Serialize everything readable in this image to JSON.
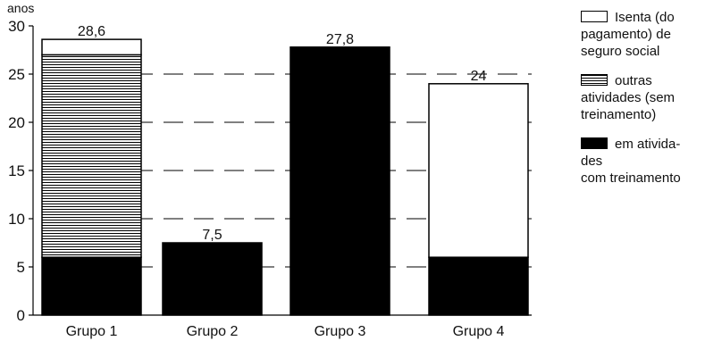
{
  "chart_data": {
    "type": "bar",
    "stacked": true,
    "unit_label": "anos",
    "categories": [
      "Grupo 1",
      "Grupo 2",
      "Grupo 3",
      "Grupo 4"
    ],
    "totals": [
      "28,6",
      "7,5",
      "27,8",
      "24"
    ],
    "series": [
      {
        "name": "em atividades com treinamento",
        "values": [
          6,
          7.5,
          27.8,
          6
        ],
        "fill": "black"
      },
      {
        "name": "outras atividades (sem treinamento)",
        "values": [
          21,
          0,
          0,
          0
        ],
        "fill": "hatch"
      },
      {
        "name": "Isenta (do pagamento) de seguro social",
        "values": [
          1.6,
          0,
          0,
          18
        ],
        "fill": "white"
      }
    ],
    "yticks": [
      0,
      5,
      10,
      15,
      20,
      25,
      30
    ],
    "ylim": [
      0,
      30
    ],
    "grid": "dashed horizontal",
    "legend_position": "right"
  },
  "legend": {
    "items": [
      {
        "lines": [
          "Isenta (do",
          "pagamento) de",
          "seguro social"
        ],
        "swatch": "white"
      },
      {
        "lines": [
          "outras",
          "atividades (sem",
          "treinamento)"
        ],
        "swatch": "hatch"
      },
      {
        "lines": [
          "em atividа-",
          "des",
          "com treinamento"
        ],
        "swatch": "black"
      }
    ]
  }
}
